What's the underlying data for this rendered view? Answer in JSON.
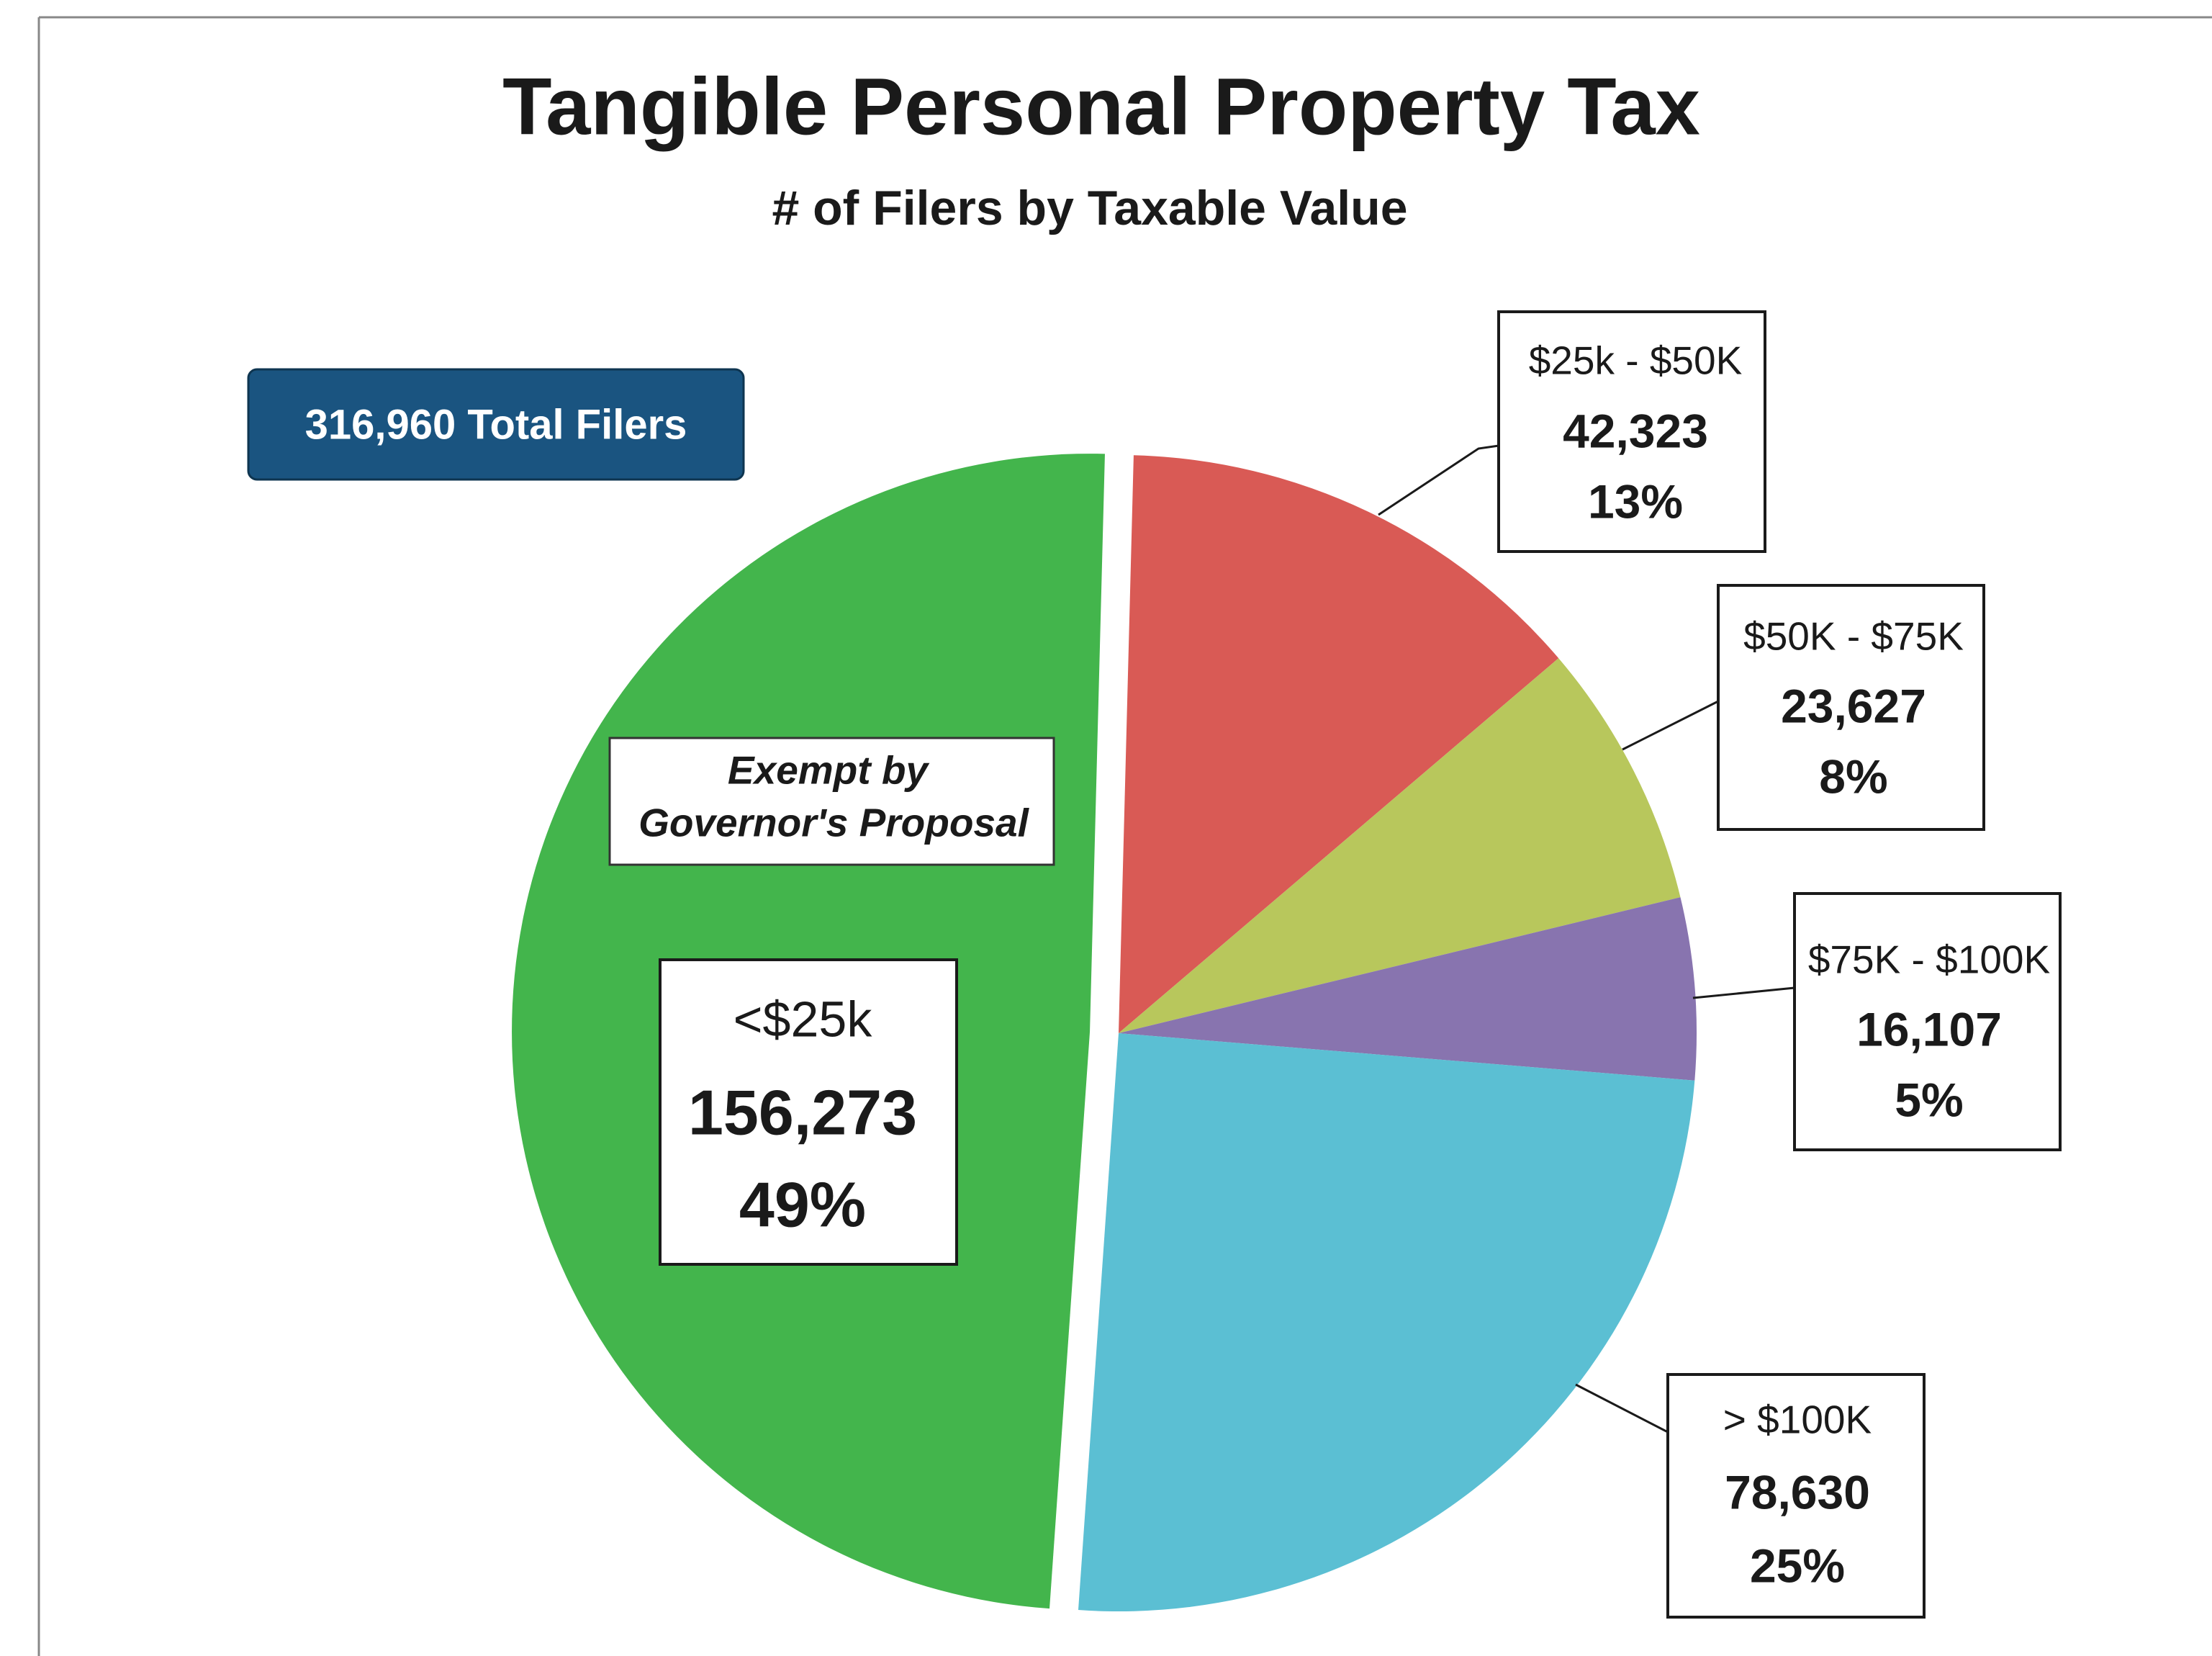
{
  "chart_data": {
    "type": "pie",
    "title": "Tangible Personal Property Tax",
    "subtitle": "# of Filers by Taxable Value",
    "total_label": "316,960 Total Filers",
    "annotation": [
      "Exempt by",
      "Governor's Proposal"
    ],
    "categories": [
      "<$25k",
      "$25k - $50K",
      "$50K - $75K",
      "$75K - $100K",
      "> $100K"
    ],
    "values": [
      156273,
      42323,
      23627,
      16107,
      78630
    ],
    "value_labels": [
      "156,273",
      "42,323",
      "23,627",
      "16,107",
      "78,630"
    ],
    "percent_labels": [
      "49%",
      "13%",
      "8%",
      "5%",
      "25%"
    ],
    "colors": [
      "#43b54c",
      "#d95a55",
      "#b8c75c",
      "#8874af",
      "#5bbfd3"
    ]
  }
}
